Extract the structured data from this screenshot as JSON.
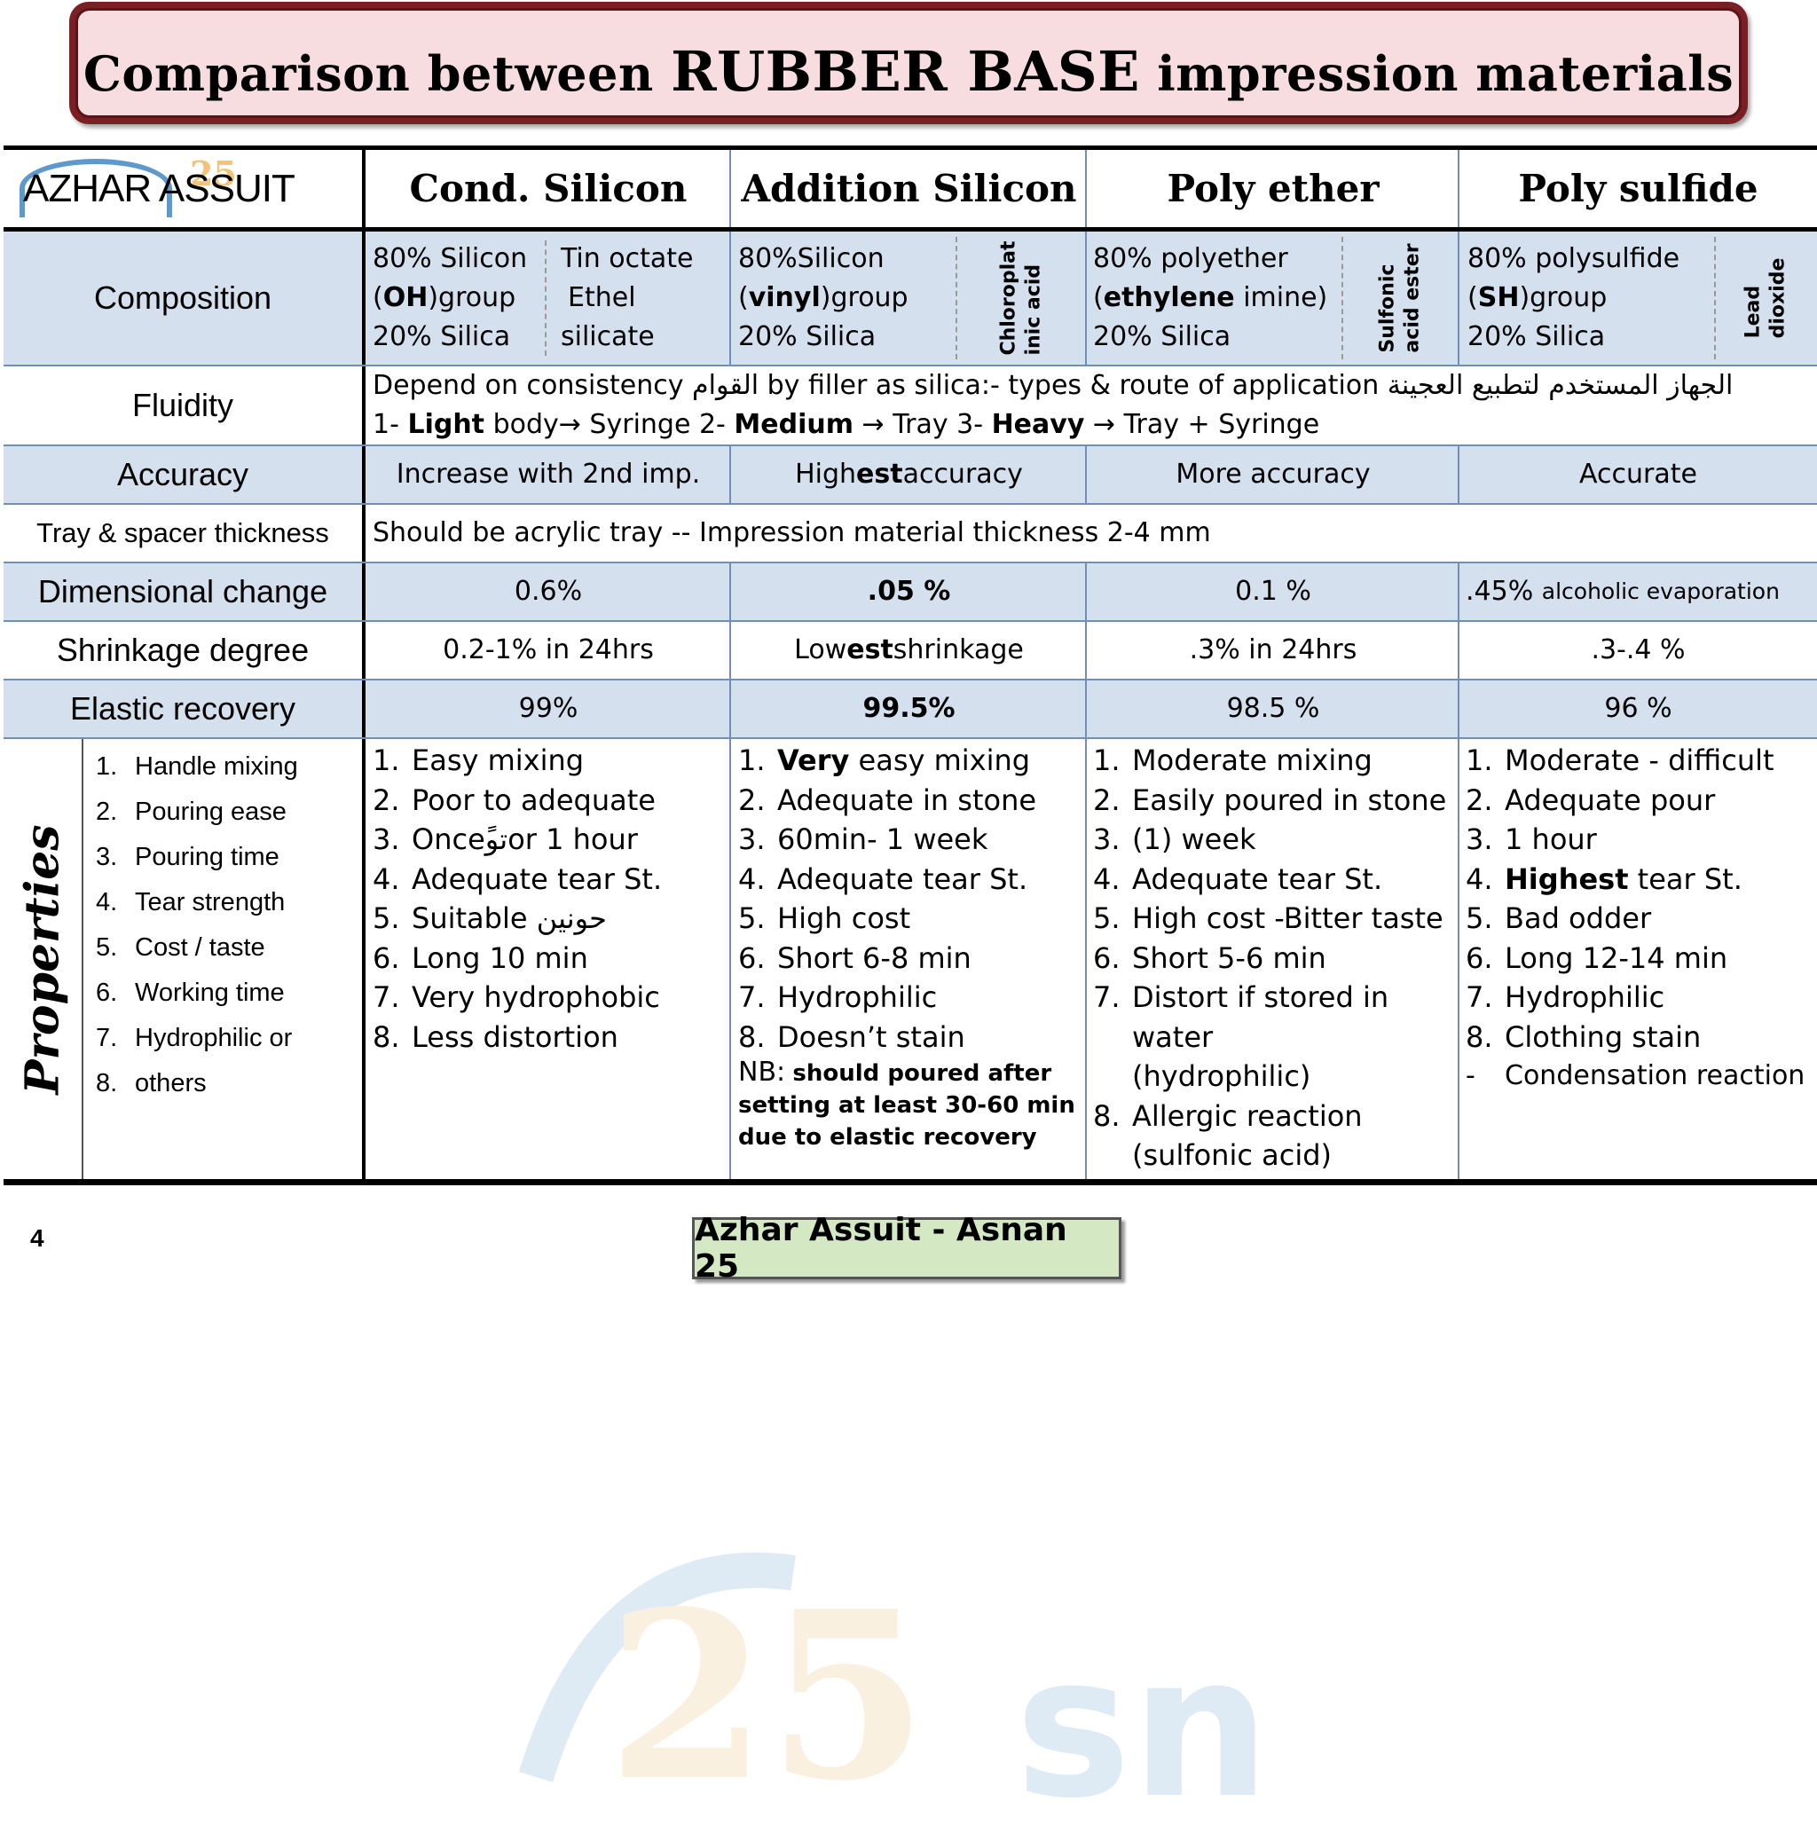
{
  "title": {
    "prefix": "Comparison between",
    "highlight": "RUBBER BASE",
    "suffix": "impression materials"
  },
  "logo": {
    "text": "AZHAR ASSUIT"
  },
  "columns": [
    "Cond. Silicon",
    "Addition Silicon",
    "Poly ether",
    "Poly sulfide"
  ],
  "rows": {
    "composition": {
      "label": "Composition",
      "cond": {
        "line1": "80% Silicon",
        "line2_bold": "OH",
        "line2_rest": ")group",
        "line3": "20% Silica",
        "cat1": "Tin octate",
        "cat2": "Ethel",
        "cat3": "silicate"
      },
      "add": {
        "line1": "80%Silicon",
        "line2_bold": "vinyl",
        "line2_rest": ")group",
        "line3": "20% Silica",
        "cat1": "Chloroplat",
        "cat2": "inic acid"
      },
      "poly": {
        "line1": "80% polyether",
        "line2_bold": "ethylene",
        "line2_rest": " imine)",
        "line3": "20% Silica",
        "cat1": "Sulfonic",
        "cat2": "acid ester"
      },
      "sulf": {
        "line1": "80% polysulfide",
        "line2_bold": "SH",
        "line2_rest": ")group",
        "line3": "20% Silica",
        "cat1": "Lead",
        "cat2": "dioxide"
      }
    },
    "fluidity": {
      "label": "Fluidity",
      "line1": "Depend on consistency القوام by filler as silica:- types & route of application الجهاز المستخدم لتطبيع العجينة",
      "l2_n1": "1- ",
      "l2_b1": "Light",
      "l2_t1": " body→ Syringe  2- ",
      "l2_b2": "Medium",
      "l2_t2": " → Tray  3- ",
      "l2_b3": "Heavy",
      "l2_t3": " → Tray + Syringe"
    },
    "accuracy": {
      "label": "Accuracy",
      "cond": "Increase with 2nd imp.",
      "add_pre": "High",
      "add_bold": "est",
      "add_post": " accuracy",
      "poly": "More accuracy",
      "sulf": "Accurate"
    },
    "tray": {
      "label": "Tray & spacer thickness",
      "value": "Should be acrylic tray   -- Impression material thickness 2-4 mm"
    },
    "dimensional": {
      "label": "Dimensional change",
      "cond": "0.6%",
      "add": ".05 %",
      "poly": "0.1 %",
      "sulf": ".45%",
      "sulf_note": "alcoholic evaporation"
    },
    "shrinkage": {
      "label": "Shrinkage degree",
      "cond": "0.2-1% in 24hrs",
      "add_pre": "Low",
      "add_bold": "est",
      "add_post": " shrinkage",
      "poly": ".3% in 24hrs",
      "sulf": ".3-.4 %"
    },
    "elastic": {
      "label": "Elastic recovery",
      "cond": "99%",
      "add": "99.5%",
      "poly": "98.5 %",
      "sulf": "96 %"
    }
  },
  "properties": {
    "label": "Properties",
    "items": [
      "Handle mixing",
      "Pouring ease",
      "Pouring time",
      "Tear strength",
      "Cost / taste",
      "Working time",
      "Hydrophilic or",
      "others"
    ],
    "cond": [
      "Easy mixing",
      "Poor to adequate",
      "Onceًتوor 1 hour",
      "Adequate tear St.",
      "Suitable حونين",
      "Long 10 min",
      "Very hydrophobic",
      "Less distortion"
    ],
    "add": [
      "Very",
      " easy  mixing",
      " Adequate in stone",
      "60min- 1 week",
      "Adequate tear St.",
      "High cost",
      "Short 6-8 min",
      "Hydrophilic",
      "Doesn’t stain"
    ],
    "add_note_prefix": "NB:",
    "add_note": "should poured after setting at least 30-60 min due to elastic recovery",
    "poly": [
      "Moderate  mixing",
      "Easily poured in stone",
      " (1) week",
      "Adequate tear St.",
      "High cost -Bitter taste",
      "Short  5-6 min",
      "Distort if stored in water (hydrophilic)",
      "Allergic reaction (sulfonic acid)"
    ],
    "sulf": [
      "Moderate - difficult",
      "Adequate pour",
      "1 hour",
      "Highest",
      " tear St.",
      " Bad odder",
      "Long  12-14 min",
      "Hydrophilic",
      "Clothing stain"
    ],
    "sulf_extra_marker": "-",
    "sulf_extra": "Condensation reaction"
  },
  "footer": {
    "page": "4",
    "text": "Azhar Assuit - Asnan 25"
  }
}
